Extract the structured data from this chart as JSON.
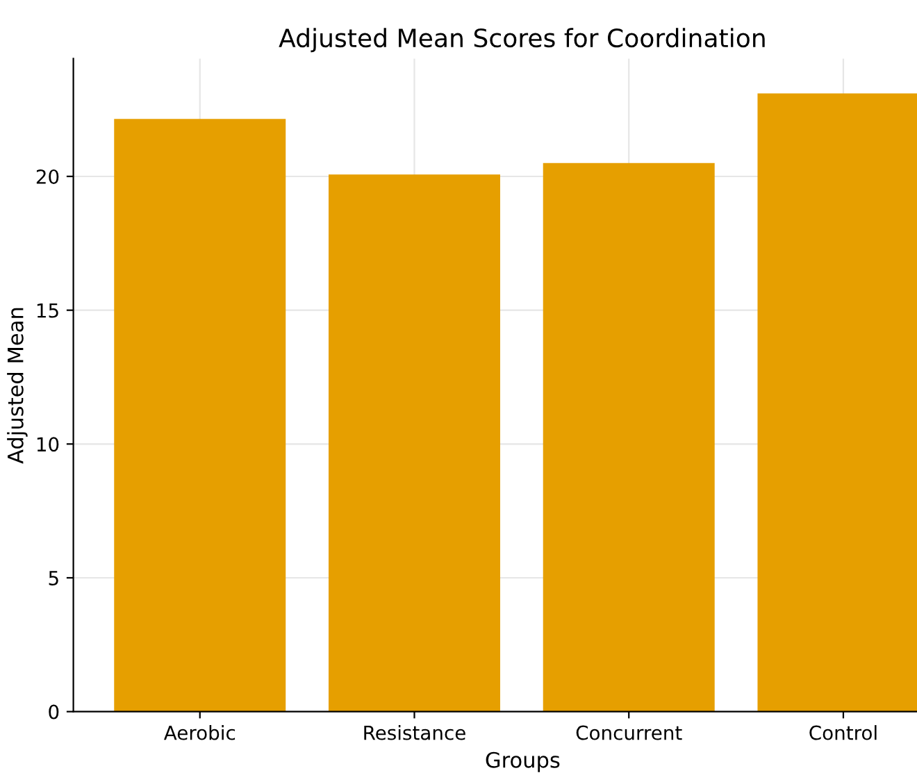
{
  "chart_data": {
    "type": "bar",
    "title": "Adjusted Mean Scores for Coordination",
    "xlabel": "Groups",
    "ylabel": "Adjusted Mean",
    "categories": [
      "Aerobic",
      "Resistance",
      "Concurrent",
      "Control"
    ],
    "values": [
      22.15,
      20.07,
      20.5,
      23.1
    ],
    "color": "#e69f00",
    "ylim": [
      0,
      24.4
    ],
    "yticks": [
      0,
      5,
      10,
      15,
      20
    ],
    "grid": true
  }
}
